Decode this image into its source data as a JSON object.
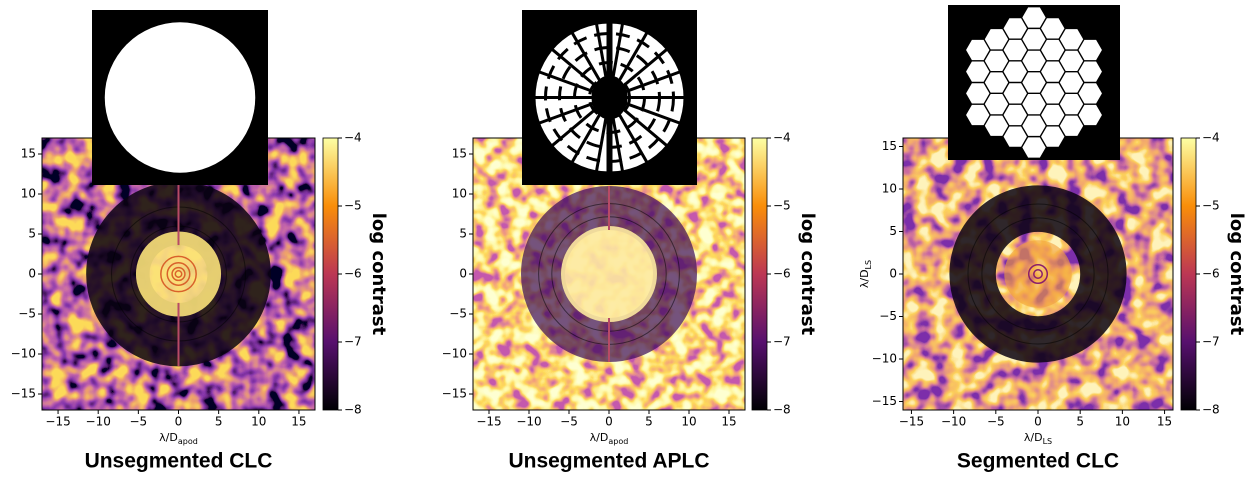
{
  "chart_data": [
    {
      "type": "heatmap",
      "caption": "Unsegmented CLC",
      "xlim": [
        -17,
        17
      ],
      "ylim": [
        -17,
        17
      ],
      "xticks": [
        {
          "value": -15,
          "label": "−15"
        },
        {
          "value": -10,
          "label": "−10"
        },
        {
          "value": -5,
          "label": "−5"
        },
        0,
        5,
        10,
        15
      ],
      "yticks": [
        {
          "value": -15,
          "label": "−15"
        },
        {
          "value": -10,
          "label": "−10"
        },
        {
          "value": -5,
          "label": "−5"
        },
        0,
        5,
        10,
        15
      ],
      "x_label": "λ/D",
      "x_label_sub": "apod",
      "colorbar": {
        "label": "log contrast",
        "lim": [
          -8,
          -4
        ],
        "ticks": [
          {
            "value": -4,
            "label": "−4"
          },
          {
            "value": -5,
            "label": "−5"
          },
          {
            "value": -6,
            "label": "−6"
          },
          {
            "value": -7,
            "label": "−7"
          },
          {
            "value": -8,
            "label": "−8"
          }
        ]
      }
    },
    {
      "type": "heatmap",
      "caption": "Unsegmented APLC",
      "xlim": [
        -17,
        17
      ],
      "ylim": [
        -17,
        17
      ],
      "xticks": [
        {
          "value": -15,
          "label": "−15"
        },
        {
          "value": -10,
          "label": "−10"
        },
        {
          "value": -5,
          "label": "−5"
        },
        0,
        5,
        10,
        15
      ],
      "yticks": [
        {
          "value": -15,
          "label": "−15"
        },
        {
          "value": -10,
          "label": "−10"
        },
        {
          "value": -5,
          "label": "−5"
        },
        0,
        5,
        10,
        15
      ],
      "x_label": "λ/D",
      "x_label_sub": "apod",
      "colorbar": {
        "label": "log contrast",
        "lim": [
          -8,
          -4
        ],
        "ticks": [
          {
            "value": -4,
            "label": "−4"
          },
          {
            "value": -5,
            "label": "−5"
          },
          {
            "value": -6,
            "label": "−6"
          },
          {
            "value": -7,
            "label": "−7"
          },
          {
            "value": -8,
            "label": "−8"
          }
        ]
      }
    },
    {
      "type": "heatmap",
      "caption": "Segmented CLC",
      "xlim": [
        -16,
        16
      ],
      "ylim": [
        -16,
        16
      ],
      "xticks": [
        {
          "value": -15,
          "label": "−15"
        },
        {
          "value": -10,
          "label": "−10"
        },
        {
          "value": -5,
          "label": "−5"
        },
        0,
        5,
        10,
        15
      ],
      "yticks": [
        {
          "value": -15,
          "label": "−15"
        },
        {
          "value": -10,
          "label": "−10"
        },
        {
          "value": -5,
          "label": "−5"
        },
        0,
        5,
        10,
        15
      ],
      "x_label": "λ/D",
      "x_label_sub": "LS",
      "y_label": "λ/D",
      "y_label_sub": "LS",
      "colorbar": {
        "label": "log contrast",
        "lim": [
          -8,
          -4
        ],
        "ticks": [
          {
            "value": -4,
            "label": "−4"
          },
          {
            "value": -5,
            "label": "−5"
          },
          {
            "value": -6,
            "label": "−6"
          },
          {
            "value": -7,
            "label": "−7"
          },
          {
            "value": -8,
            "label": "−8"
          }
        ]
      }
    }
  ]
}
